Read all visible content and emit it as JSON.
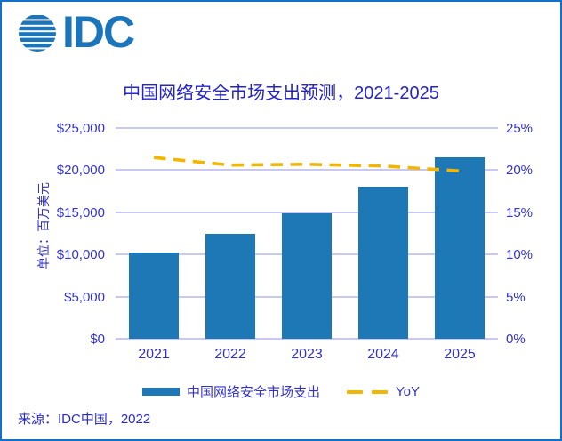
{
  "window": {
    "border_color": "#1470C8",
    "background": "#FFFFFF"
  },
  "logo": {
    "text": "IDC",
    "color": "#1B75BB",
    "icon": "striped-globe-icon"
  },
  "title": {
    "text": "中国网络安全市场支出预测，2021-2025",
    "color": "#2424C8"
  },
  "chart_data": {
    "type": "bar",
    "categories": [
      "2021",
      "2022",
      "2023",
      "2024",
      "2025"
    ],
    "series": [
      {
        "name": "中国网络安全市场支出",
        "type": "bar",
        "axis": "left",
        "values": [
          10200,
          12400,
          14900,
          18000,
          21500
        ],
        "color": "#1F78B6"
      },
      {
        "name": "YoY",
        "type": "line",
        "axis": "right",
        "values": [
          21.5,
          20.6,
          20.7,
          20.5,
          19.9
        ],
        "color": "#F2B500",
        "dashed": true
      }
    ],
    "title": "中国网络安全市场支出预测，2021-2025",
    "xlabel": "",
    "ylabel_left": "单位：百万美元",
    "left_axis": {
      "label": "单位：百万美元",
      "min": 0,
      "max": 25000,
      "ticks": [
        "$25,000",
        "$20,000",
        "$15,000",
        "$10,000",
        "$5,000",
        "$0"
      ]
    },
    "right_axis": {
      "min": 0,
      "max": 25,
      "ticks": [
        "25%",
        "20%",
        "15%",
        "10%",
        "5%",
        "0%"
      ]
    },
    "grid": true,
    "gridline_color": "#C8C8F0",
    "legend_position": "bottom"
  },
  "legend": {
    "items": [
      {
        "label": "中国网络安全市场支出",
        "swatch": "bar",
        "color": "#1F78B6"
      },
      {
        "label": "YoY",
        "swatch": "dash",
        "color": "#F2B500"
      }
    ]
  },
  "source": {
    "text": "来源：IDC中国，2022"
  }
}
